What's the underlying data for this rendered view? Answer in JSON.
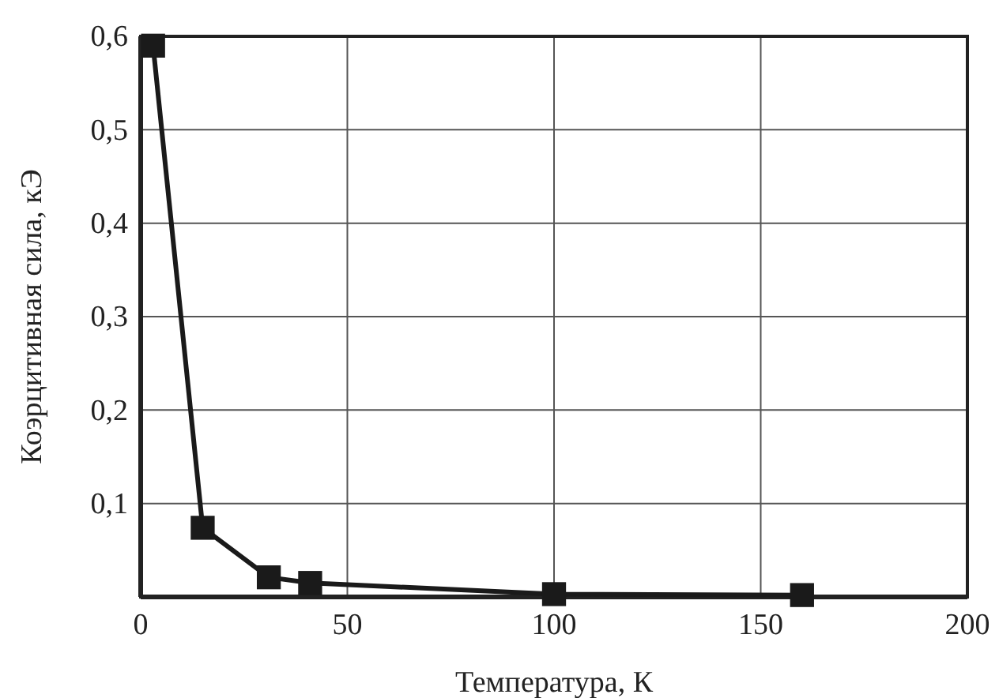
{
  "chart_data": {
    "type": "line",
    "xlabel": "Температура, К",
    "ylabel": "Коэрцитивная сила, кЭ",
    "x": [
      3,
      15,
      31,
      41,
      100,
      160
    ],
    "series": [
      {
        "color": "#1a1a1a",
        "values": [
          0.59,
          0.074,
          0.021,
          0.015,
          0.003,
          0.002
        ]
      }
    ],
    "xlim": [
      0,
      200
    ],
    "xticks": [
      0,
      50,
      100,
      150,
      200
    ],
    "ylim": [
      0,
      0.6
    ],
    "yticks": [
      {
        "value": 0.1,
        "label": "0,1"
      },
      {
        "value": 0.2,
        "label": "0,2"
      },
      {
        "value": 0.3,
        "label": "0,3"
      },
      {
        "value": 0.4,
        "label": "0,4"
      },
      {
        "value": 0.5,
        "label": "0,5"
      },
      {
        "value": 0.6,
        "label": "0,6"
      }
    ],
    "grid": true,
    "marker": "square",
    "line_style": "solid"
  }
}
